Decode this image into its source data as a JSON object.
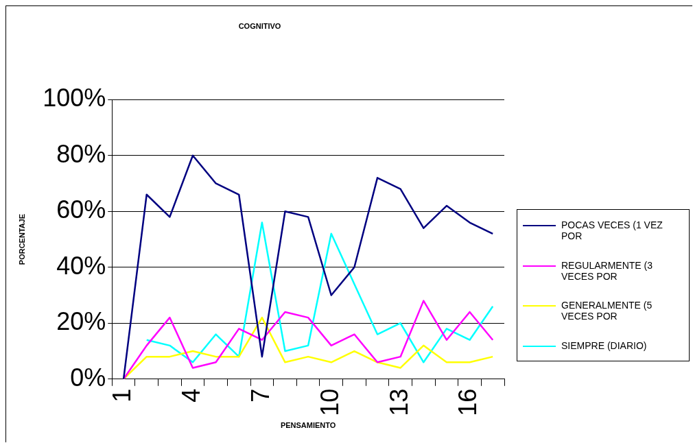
{
  "chart_data": {
    "type": "line",
    "title": "COGNITIVO",
    "xlabel": "PENSAMIENTO",
    "ylabel": "PORCENTAJE",
    "categories": [
      "1",
      null,
      null,
      "4",
      null,
      null,
      "7",
      null,
      null,
      "10",
      null,
      null,
      "13",
      null,
      null,
      "16",
      null
    ],
    "series": [
      {
        "name": "POCAS VECES (1 VEZ POR",
        "color": "#000080",
        "values": [
          0,
          66,
          58,
          80,
          70,
          66,
          8,
          60,
          58,
          30,
          40,
          72,
          68,
          54,
          62,
          56,
          52
        ]
      },
      {
        "name": "REGULARMENTE (3 VECES POR",
        "color": "#ff00ff",
        "values": [
          0,
          12,
          22,
          4,
          6,
          18,
          14,
          24,
          22,
          12,
          16,
          6,
          8,
          28,
          14,
          24,
          14
        ]
      },
      {
        "name": "GENERALMENTE (5 VECES POR",
        "color": "#ffff00",
        "values": [
          0,
          8,
          8,
          10,
          8,
          8,
          22,
          6,
          8,
          6,
          10,
          6,
          4,
          12,
          6,
          6,
          8
        ]
      },
      {
        "name": "SIEMPRE (DIARIO)",
        "color": "#00ffff",
        "values": [
          null,
          14,
          12,
          6,
          16,
          8,
          56,
          10,
          12,
          52,
          34,
          16,
          20,
          6,
          18,
          14,
          26
        ]
      }
    ],
    "ylim": [
      0,
      100
    ],
    "yticks": [
      {
        "value": 0,
        "label": "0%"
      },
      {
        "value": 20,
        "label": "20%"
      },
      {
        "value": 40,
        "label": "40%"
      },
      {
        "value": 60,
        "label": "60%"
      },
      {
        "value": 80,
        "label": "80%"
      },
      {
        "value": 100,
        "label": "100%"
      }
    ],
    "grid": "y",
    "legend": "right",
    "marker": "none",
    "line_style": "solid"
  }
}
